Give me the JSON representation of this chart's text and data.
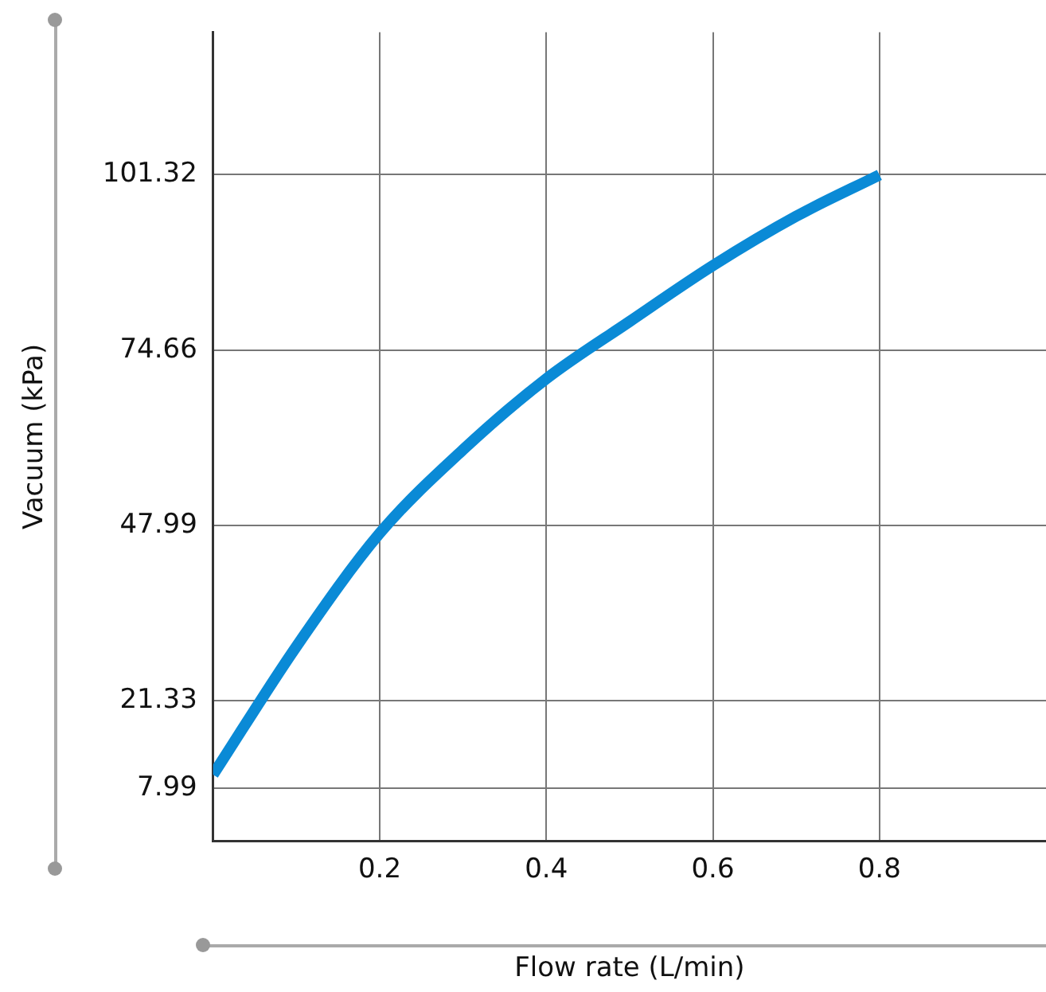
{
  "chart_data": {
    "type": "line",
    "xlabel": "Flow rate (L/min)",
    "ylabel": "Vacuum (kPa)",
    "x": [
      0,
      0.1,
      0.2,
      0.3,
      0.4,
      0.5,
      0.6,
      0.7,
      0.8
    ],
    "series": [
      {
        "color": "#0a8ad6",
        "values": [
          10.1,
          29.6,
          46.8,
          59.5,
          70.3,
          79,
          87.5,
          95,
          101.3
        ]
      }
    ],
    "xlim": [
      0,
      1
    ],
    "xticks": [
      0.2,
      0.4,
      0.6,
      0.8
    ],
    "ylim": [
      0,
      123
    ],
    "yticks": [
      7.99,
      21.33,
      47.99,
      74.66,
      101.32
    ],
    "grid": true,
    "legend": false,
    "marker": "none",
    "line_style": "solid"
  }
}
